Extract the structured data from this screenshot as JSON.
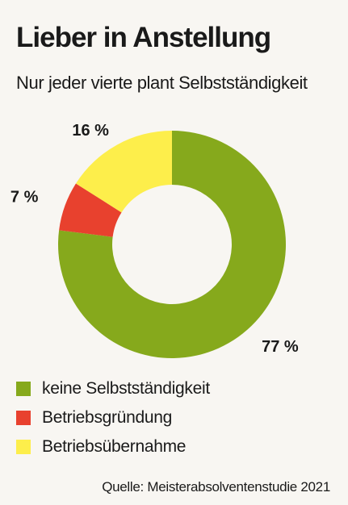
{
  "title": "Lieber in Anstellung",
  "subtitle": "Nur jeder vierte plant Selbstständigkeit",
  "source": "Quelle: Meisterabsolventenstudie 2021",
  "chart_data": {
    "type": "pie",
    "donut": true,
    "categories": [
      "keine Selbstständigkeit",
      "Betriebsgründung",
      "Betriebsübernahme"
    ],
    "values": [
      77,
      7,
      16
    ],
    "labels": [
      "77 %",
      "7 %",
      "16 %"
    ],
    "colors": [
      "#86a91c",
      "#e8412e",
      "#fdee4b"
    ],
    "legend_position": "bottom-left"
  }
}
